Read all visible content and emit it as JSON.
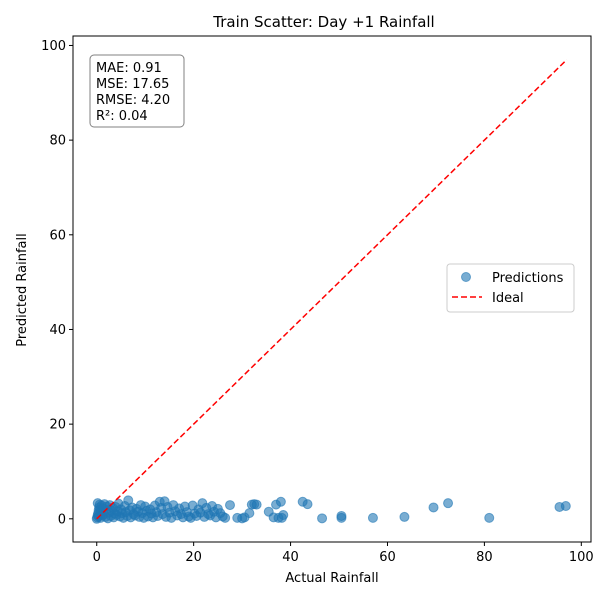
{
  "chart_data": {
    "type": "scatter",
    "title": "Train Scatter: Day +1 Rainfall",
    "xlabel": "Actual Rainfall",
    "ylabel": "Predicted Rainfall",
    "xlim": [
      -4.9,
      102.0
    ],
    "ylim": [
      -4.9,
      102.0
    ],
    "xticks": [
      0,
      20,
      40,
      60,
      80,
      100
    ],
    "yticks": [
      0,
      20,
      40,
      60,
      80,
      100
    ],
    "grid": false,
    "legend_position": "center-right",
    "stats": [
      "MAE: 0.91",
      "MSE: 17.65",
      "RMSE: 4.20",
      "R²: 0.04"
    ],
    "series": [
      {
        "name": "Predictions",
        "kind": "scatter",
        "color": "#1f77b4",
        "alpha": 0.6,
        "points": [
          [
            0.0,
            0.0
          ],
          [
            0.1,
            0.3
          ],
          [
            0.2,
            0.8
          ],
          [
            0.3,
            1.2
          ],
          [
            0.4,
            1.8
          ],
          [
            0.5,
            2.4
          ],
          [
            0.6,
            3.0
          ],
          [
            0.2,
            3.3
          ],
          [
            0.4,
            0.5
          ],
          [
            0.7,
            2.0
          ],
          [
            0.8,
            0.2
          ],
          [
            0.9,
            1.5
          ],
          [
            1.0,
            2.8
          ],
          [
            1.2,
            0.7
          ],
          [
            1.3,
            2.2
          ],
          [
            1.5,
            1.0
          ],
          [
            1.6,
            3.1
          ],
          [
            1.8,
            0.4
          ],
          [
            2.0,
            1.9
          ],
          [
            2.1,
            2.6
          ],
          [
            2.3,
            0.1
          ],
          [
            2.5,
            1.3
          ],
          [
            2.7,
            2.9
          ],
          [
            2.9,
            0.6
          ],
          [
            3.1,
            1.7
          ],
          [
            3.3,
            2.3
          ],
          [
            3.5,
            0.3
          ],
          [
            3.7,
            1.1
          ],
          [
            3.9,
            2.5
          ],
          [
            4.1,
            0.8
          ],
          [
            4.3,
            1.6
          ],
          [
            4.5,
            3.2
          ],
          [
            4.8,
            0.5
          ],
          [
            5.0,
            2.0
          ],
          [
            5.2,
            1.2
          ],
          [
            5.5,
            0.2
          ],
          [
            5.8,
            2.7
          ],
          [
            6.0,
            1.4
          ],
          [
            6.3,
            0.6
          ],
          [
            6.5,
            3.9
          ],
          [
            6.8,
            1.8
          ],
          [
            7.0,
            0.3
          ],
          [
            7.3,
            2.4
          ],
          [
            7.6,
            1.0
          ],
          [
            7.9,
            0.7
          ],
          [
            8.2,
            2.1
          ],
          [
            8.5,
            1.5
          ],
          [
            8.8,
            0.4
          ],
          [
            9.1,
            2.9
          ],
          [
            9.4,
            1.2
          ],
          [
            9.7,
            0.2
          ],
          [
            10.0,
            2.6
          ],
          [
            10.3,
            1.7
          ],
          [
            10.6,
            0.5
          ],
          [
            11.0,
            2.0
          ],
          [
            11.3,
            1.1
          ],
          [
            11.6,
            0.3
          ],
          [
            12.0,
            2.8
          ],
          [
            12.3,
            1.4
          ],
          [
            12.6,
            0.6
          ],
          [
            13.0,
            3.6
          ],
          [
            13.3,
            2.3
          ],
          [
            13.6,
            1.0
          ],
          [
            14.0,
            3.7
          ],
          [
            14.3,
            0.4
          ],
          [
            14.6,
            2.5
          ],
          [
            15.0,
            1.3
          ],
          [
            15.4,
            0.2
          ],
          [
            15.8,
            2.9
          ],
          [
            16.2,
            1.6
          ],
          [
            16.6,
            0.7
          ],
          [
            17.0,
            2.2
          ],
          [
            17.4,
            1.0
          ],
          [
            17.8,
            0.3
          ],
          [
            18.2,
            2.6
          ],
          [
            18.6,
            1.4
          ],
          [
            19.0,
            0.5
          ],
          [
            19.4,
            0.2
          ],
          [
            19.8,
            2.8
          ],
          [
            20.2,
            1.1
          ],
          [
            20.6,
            0.6
          ],
          [
            21.0,
            2.0
          ],
          [
            21.4,
            1.3
          ],
          [
            21.8,
            3.3
          ],
          [
            22.2,
            0.4
          ],
          [
            22.6,
            2.3
          ],
          [
            23.0,
            1.0
          ],
          [
            23.4,
            0.7
          ],
          [
            23.8,
            2.7
          ],
          [
            24.2,
            1.5
          ],
          [
            24.6,
            0.3
          ],
          [
            25.0,
            2.1
          ],
          [
            25.5,
            1.2
          ],
          [
            26.0,
            0.5
          ],
          [
            26.5,
            0.2
          ],
          [
            27.5,
            2.9
          ],
          [
            29.0,
            0.2
          ],
          [
            30.0,
            0.1
          ],
          [
            30.5,
            0.3
          ],
          [
            31.5,
            1.2
          ],
          [
            32.0,
            3.0
          ],
          [
            32.5,
            3.1
          ],
          [
            33.0,
            3.0
          ],
          [
            35.5,
            1.5
          ],
          [
            36.5,
            0.3
          ],
          [
            37.0,
            3.0
          ],
          [
            37.5,
            0.2
          ],
          [
            38.0,
            3.6
          ],
          [
            38.5,
            0.8
          ],
          [
            38.2,
            0.2
          ],
          [
            42.5,
            3.6
          ],
          [
            43.5,
            3.1
          ],
          [
            46.5,
            0.1
          ],
          [
            50.5,
            0.6
          ],
          [
            50.5,
            0.2
          ],
          [
            57.0,
            0.2
          ],
          [
            63.5,
            0.4
          ],
          [
            69.5,
            2.4
          ],
          [
            72.5,
            3.3
          ],
          [
            81.0,
            0.2
          ],
          [
            95.5,
            2.5
          ],
          [
            96.8,
            2.7
          ]
        ]
      },
      {
        "name": "Ideal",
        "kind": "line",
        "color": "#ff0000",
        "dash": "dashed",
        "points": [
          [
            0.0,
            0.0
          ],
          [
            97.0,
            97.0
          ]
        ]
      }
    ]
  }
}
